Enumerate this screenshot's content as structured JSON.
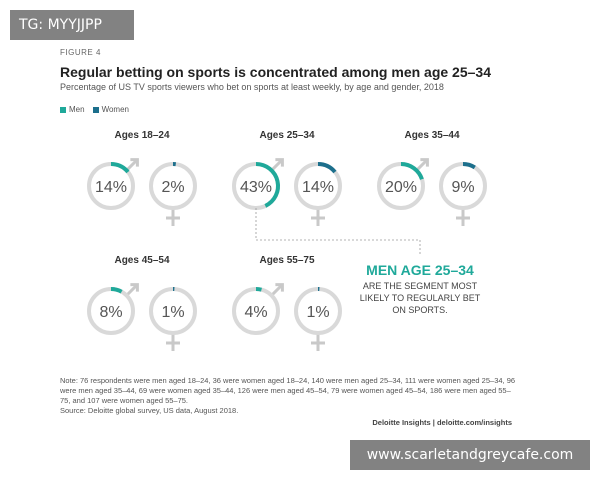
{
  "watermarks": {
    "top": "TG: MYYJJPP",
    "bottom": "www.scarletandgreycafe.com"
  },
  "figure_label": "FIGURE 4",
  "colors": {
    "men": "#1fa99a",
    "women": "#1c6f8c",
    "ring_bg": "#d9d9d9",
    "symbol": "#c9c9c9",
    "text": "#333333"
  },
  "callout": {
    "heading": "MEN AGE 25–34",
    "lines": [
      "ARE THE SEGMENT MOST",
      "LIKELY TO REGULARLY BET",
      "ON SPORTS."
    ]
  },
  "note": "Note: 76 respondents were men aged 18–24, 36 were women aged 18–24, 140 were men aged 25–34, 111 were women aged 25–34, 96 were men aged 35–44, 69 were women aged 35–44, 126 were men aged 45–54, 79 were women aged 45–54, 186 were men aged 55–75, and 107 were women aged 55–75.",
  "source": "Source: Deloitte global survey, US data, August 2018.",
  "credit": "Deloitte Insights | deloitte.com/insights",
  "chart_data": {
    "type": "donut-grid",
    "title": "Regular betting on sports is concentrated among men age 25–34",
    "subtitle": "Percentage of US TV sports viewers who bet on sports at least weekly, by age and gender, 2018",
    "unit": "%",
    "legend": [
      {
        "name": "Men"
      },
      {
        "name": "Women"
      }
    ],
    "categories": [
      "Ages 18–24",
      "Ages 25–34",
      "Ages 35–44",
      "Ages 45–54",
      "Ages 55–75"
    ],
    "series": [
      {
        "name": "Men",
        "values": [
          14,
          43,
          20,
          8,
          4
        ]
      },
      {
        "name": "Women",
        "values": [
          2,
          14,
          9,
          1,
          1
        ]
      }
    ]
  }
}
